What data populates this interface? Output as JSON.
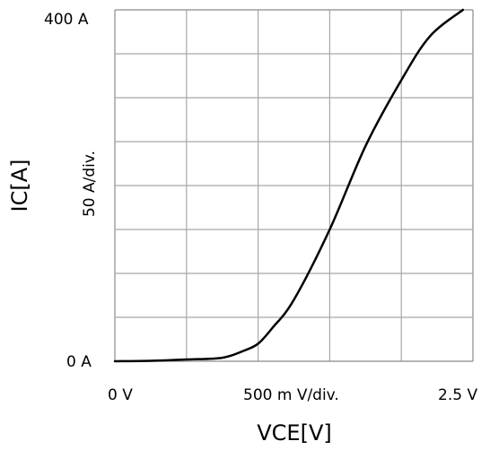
{
  "chart_data": {
    "type": "line",
    "xlabel": "VCE[V]",
    "ylabel": "IC[A]",
    "x_scale_label": "500 m  V/div.",
    "y_scale_label": "50  A/div.",
    "x_min_label": "0  V",
    "x_max_label": "2.5  V",
    "y_min_label": "0  A",
    "y_max_label": "400  A",
    "xlim": [
      0,
      2.5
    ],
    "ylim": [
      0,
      400
    ],
    "grid": true,
    "grid_divisions_x": 5,
    "grid_divisions_y": 8,
    "series": [
      {
        "x": [
          0,
          0.25,
          0.5,
          0.75,
          0.9,
          1.0,
          1.1,
          1.25,
          1.5,
          1.75,
          2.0,
          2.2,
          2.43
        ],
        "y": [
          0,
          0.5,
          2,
          4,
          12,
          20,
          38,
          70,
          150,
          245,
          320,
          370,
          400
        ],
        "color": "#000000"
      }
    ]
  }
}
